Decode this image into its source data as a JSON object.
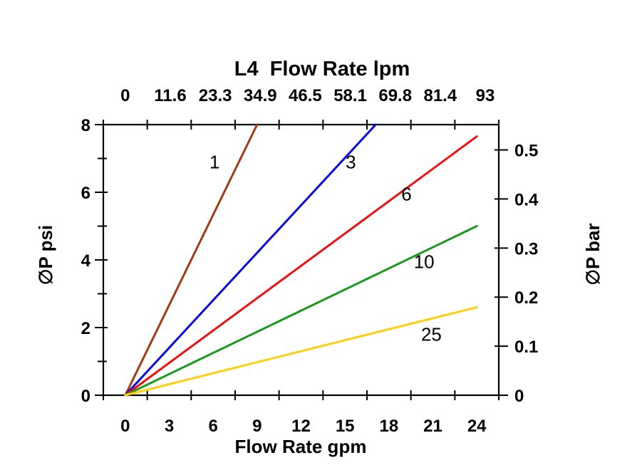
{
  "page": {
    "background": "#FFFFFF",
    "text_color": "#000000"
  },
  "chart_data": {
    "type": "line",
    "title": "L4  Flow Rate lpm",
    "xlabel": "Flow Rate gpm",
    "ylabel_left": "∅P psi",
    "ylabel_right": "∅P bar",
    "x_tick_labels_gpm": [
      "0",
      "3",
      "6",
      "9",
      "12",
      "15",
      "18",
      "21",
      "24"
    ],
    "top_tick_labels_lpm": [
      "0",
      "11.6",
      "23.3",
      "34.9",
      "46.5",
      "58.1",
      "69.8",
      "81.4",
      "93"
    ],
    "y_tick_labels_psi": [
      "0",
      "2",
      "4",
      "6",
      "8"
    ],
    "y_tick_labels_bar": [
      "0",
      "0.1",
      "0.2",
      "0.3",
      "0.4",
      "0.5"
    ],
    "xlim_gpm": [
      0,
      24
    ],
    "ylim_psi": [
      0,
      8
    ],
    "bar_per_psi": 0.0689476,
    "grid": false,
    "legend_position": "inline-curve-labels",
    "axis_color": "#000000",
    "series": [
      {
        "label": "1",
        "color": "#A23B14",
        "points_gpm_psi": [
          [
            0,
            0
          ],
          [
            9.0,
            8.0
          ]
        ],
        "clipped_at_ylim": true,
        "label_at_gpm_psi": [
          6.1,
          6.9
        ]
      },
      {
        "label": "3",
        "color": "#0A0ADF",
        "points_gpm_psi": [
          [
            0,
            0
          ],
          [
            17.1,
            8.0
          ]
        ],
        "clipped_at_ylim": true,
        "label_at_gpm_psi": [
          15.4,
          6.9
        ]
      },
      {
        "label": "6",
        "color": "#EE1111",
        "points_gpm_psi": [
          [
            0,
            0
          ],
          [
            24,
            7.65
          ]
        ],
        "clipped_at_ylim": false,
        "label_at_gpm_psi": [
          19.2,
          5.95
        ]
      },
      {
        "label": "10",
        "color": "#189A18",
        "points_gpm_psi": [
          [
            0,
            0
          ],
          [
            24,
            5.0
          ]
        ],
        "clipped_at_ylim": false,
        "label_at_gpm_psi": [
          20.4,
          3.95
        ]
      },
      {
        "label": "25",
        "color": "#FFCD11",
        "points_gpm_psi": [
          [
            0,
            0
          ],
          [
            24,
            2.6
          ]
        ],
        "clipped_at_ylim": false,
        "label_at_gpm_psi": [
          20.9,
          1.8
        ]
      }
    ]
  }
}
